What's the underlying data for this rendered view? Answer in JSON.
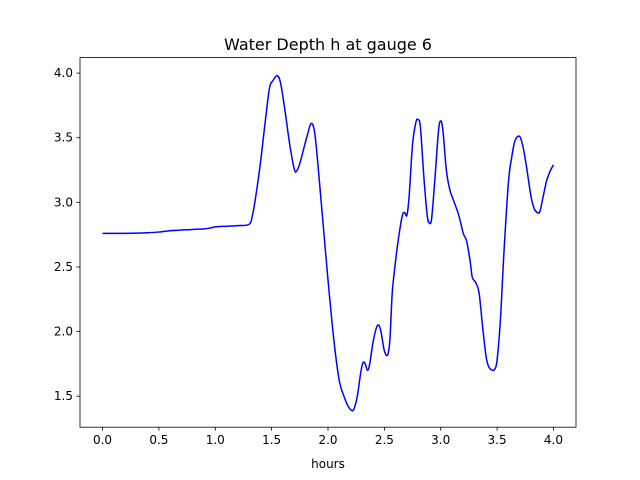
{
  "chart_data": {
    "type": "line",
    "title": "Water Depth h at gauge 6",
    "xlabel": "hours",
    "ylabel": "",
    "xlim": [
      -0.2,
      4.2
    ],
    "ylim": [
      1.26,
      4.12
    ],
    "grid": false,
    "xticks": [
      0.0,
      0.5,
      1.0,
      1.5,
      2.0,
      2.5,
      3.0,
      3.5,
      4.0
    ],
    "xtick_labels": [
      "0.0",
      "0.5",
      "1.0",
      "1.5",
      "2.0",
      "2.5",
      "3.0",
      "3.5",
      "4.0"
    ],
    "yticks": [
      1.5,
      2.0,
      2.5,
      3.0,
      3.5,
      4.0
    ],
    "ytick_labels": [
      "1.5",
      "2.0",
      "2.5",
      "3.0",
      "3.5",
      "4.0"
    ],
    "line_color": "#0000ff",
    "series": [
      {
        "x": [
          0.0,
          0.2,
          0.4,
          0.5,
          0.6,
          0.8,
          0.9,
          0.95,
          1.0,
          1.1,
          1.2,
          1.3,
          1.33,
          1.36,
          1.4,
          1.44,
          1.48,
          1.51,
          1.55,
          1.58,
          1.62,
          1.66,
          1.7,
          1.72,
          1.75,
          1.78,
          1.82,
          1.85,
          1.88,
          1.91,
          1.95,
          2.0,
          2.05,
          2.1,
          2.15,
          2.18,
          2.21,
          2.23,
          2.26,
          2.29,
          2.31,
          2.33,
          2.35,
          2.37,
          2.4,
          2.43,
          2.45,
          2.47,
          2.5,
          2.53,
          2.55,
          2.57,
          2.6,
          2.63,
          2.66,
          2.68,
          2.7,
          2.72,
          2.75,
          2.78,
          2.8,
          2.82,
          2.85,
          2.88,
          2.9,
          2.92,
          2.95,
          2.98,
          3.0,
          3.02,
          3.05,
          3.08,
          3.12,
          3.16,
          3.2,
          3.23,
          3.26,
          3.28,
          3.31,
          3.34,
          3.37,
          3.4,
          3.42,
          3.44,
          3.46,
          3.48,
          3.5,
          3.53,
          3.56,
          3.6,
          3.63,
          3.66,
          3.7,
          3.73,
          3.76,
          3.8,
          3.83,
          3.86,
          3.88,
          3.91,
          3.94,
          3.97,
          4.0
        ],
        "y": [
          2.76,
          2.76,
          2.765,
          2.77,
          2.78,
          2.79,
          2.795,
          2.8,
          2.81,
          2.815,
          2.82,
          2.83,
          2.9,
          3.05,
          3.3,
          3.6,
          3.88,
          3.94,
          3.98,
          3.92,
          3.7,
          3.45,
          3.26,
          3.24,
          3.3,
          3.4,
          3.53,
          3.61,
          3.55,
          3.3,
          2.9,
          2.4,
          1.95,
          1.62,
          1.48,
          1.42,
          1.39,
          1.4,
          1.5,
          1.68,
          1.76,
          1.75,
          1.7,
          1.75,
          1.92,
          2.03,
          2.05,
          2.0,
          1.85,
          1.82,
          1.95,
          2.3,
          2.55,
          2.75,
          2.9,
          2.92,
          2.9,
          3.05,
          3.45,
          3.62,
          3.64,
          3.58,
          3.2,
          2.9,
          2.84,
          2.88,
          3.2,
          3.55,
          3.63,
          3.55,
          3.25,
          3.1,
          3.0,
          2.9,
          2.76,
          2.7,
          2.55,
          2.42,
          2.38,
          2.3,
          2.05,
          1.82,
          1.74,
          1.71,
          1.7,
          1.71,
          1.78,
          2.1,
          2.6,
          3.15,
          3.35,
          3.48,
          3.51,
          3.43,
          3.28,
          3.05,
          2.95,
          2.92,
          2.93,
          3.05,
          3.17,
          3.24,
          3.29
        ]
      }
    ]
  }
}
